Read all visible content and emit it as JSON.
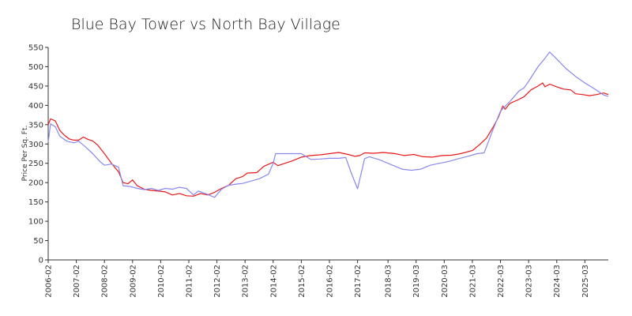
{
  "chart_data": {
    "type": "line",
    "title": "Blue Bay Tower vs North Bay Village",
    "xlabel": "",
    "ylabel": "Price Per Sq. Ft.",
    "ylim": [
      0,
      550
    ],
    "xlim": [
      "2006-02",
      "2026-01"
    ],
    "y_ticks": [
      0,
      50,
      100,
      150,
      200,
      250,
      300,
      350,
      400,
      450,
      500,
      550
    ],
    "x_ticks": [
      "2006-02",
      "2007-02",
      "2008-02",
      "2009-02",
      "2010-02",
      "2011-02",
      "2012-02",
      "2013-02",
      "2014-02",
      "2015-02",
      "2016-02",
      "2017-02",
      "2018-03",
      "2019-03",
      "2020-03",
      "2021-03",
      "2022-03",
      "2023-03",
      "2024-03",
      "2025-03"
    ],
    "grid": false,
    "legend": "none",
    "series": [
      {
        "color": "#e8181a",
        "points": [
          [
            "2006-02",
            350
          ],
          [
            "2006-03",
            365
          ],
          [
            "2006-05",
            360
          ],
          [
            "2006-07",
            335
          ],
          [
            "2006-09",
            322
          ],
          [
            "2006-11",
            313
          ],
          [
            "2007-01",
            310
          ],
          [
            "2007-03",
            310
          ],
          [
            "2007-05",
            318
          ],
          [
            "2007-07",
            312
          ],
          [
            "2007-09",
            308
          ],
          [
            "2007-11",
            298
          ],
          [
            "2008-02",
            275
          ],
          [
            "2008-05",
            250
          ],
          [
            "2008-08",
            228
          ],
          [
            "2008-10",
            200
          ],
          [
            "2008-12",
            197
          ],
          [
            "2009-02",
            207
          ],
          [
            "2009-04",
            192
          ],
          [
            "2009-07",
            183
          ],
          [
            "2009-10",
            180
          ],
          [
            "2010-01",
            178
          ],
          [
            "2010-04",
            176
          ],
          [
            "2010-07",
            168
          ],
          [
            "2010-10",
            172
          ],
          [
            "2011-01",
            166
          ],
          [
            "2011-04",
            165
          ],
          [
            "2011-07",
            172
          ],
          [
            "2011-10",
            168
          ],
          [
            "2012-01",
            175
          ],
          [
            "2012-04",
            185
          ],
          [
            "2012-07",
            193
          ],
          [
            "2012-10",
            210
          ],
          [
            "2013-01",
            216
          ],
          [
            "2013-03",
            225
          ],
          [
            "2013-07",
            226
          ],
          [
            "2013-10",
            242
          ],
          [
            "2014-02",
            253
          ],
          [
            "2014-04",
            244
          ],
          [
            "2014-07",
            250
          ],
          [
            "2014-10",
            256
          ],
          [
            "2015-02",
            266
          ],
          [
            "2015-06",
            270
          ],
          [
            "2015-10",
            272
          ],
          [
            "2016-02",
            275
          ],
          [
            "2016-06",
            278
          ],
          [
            "2016-10",
            273
          ],
          [
            "2017-01",
            268
          ],
          [
            "2017-03",
            270
          ],
          [
            "2017-05",
            277
          ],
          [
            "2017-09",
            276
          ],
          [
            "2018-01",
            278
          ],
          [
            "2018-06",
            275
          ],
          [
            "2018-10",
            270
          ],
          [
            "2019-02",
            273
          ],
          [
            "2019-06",
            267
          ],
          [
            "2019-10",
            266
          ],
          [
            "2020-02",
            270
          ],
          [
            "2020-06",
            271
          ],
          [
            "2020-10",
            275
          ],
          [
            "2021-03",
            283
          ],
          [
            "2021-06",
            298
          ],
          [
            "2021-09",
            315
          ],
          [
            "2021-12",
            345
          ],
          [
            "2022-02",
            368
          ],
          [
            "2022-04",
            398
          ],
          [
            "2022-05",
            390
          ],
          [
            "2022-07",
            405
          ],
          [
            "2022-10",
            413
          ],
          [
            "2023-01",
            422
          ],
          [
            "2023-04",
            440
          ],
          [
            "2023-07",
            450
          ],
          [
            "2023-09",
            458
          ],
          [
            "2023-10",
            448
          ],
          [
            "2023-12",
            455
          ],
          [
            "2024-03",
            448
          ],
          [
            "2024-06",
            442
          ],
          [
            "2024-09",
            440
          ],
          [
            "2024-11",
            430
          ],
          [
            "2025-02",
            428
          ],
          [
            "2025-05",
            425
          ],
          [
            "2025-08",
            428
          ],
          [
            "2025-11",
            432
          ],
          [
            "2026-01",
            428
          ]
        ]
      },
      {
        "color": "#8888ee",
        "points": [
          [
            "2006-02",
            305
          ],
          [
            "2006-03",
            352
          ],
          [
            "2006-05",
            345
          ],
          [
            "2006-07",
            320
          ],
          [
            "2006-10",
            307
          ],
          [
            "2007-01",
            303
          ],
          [
            "2007-03",
            307
          ],
          [
            "2007-06",
            292
          ],
          [
            "2007-09",
            275
          ],
          [
            "2007-12",
            255
          ],
          [
            "2008-02",
            245
          ],
          [
            "2008-05",
            248
          ],
          [
            "2008-08",
            240
          ],
          [
            "2008-10",
            192
          ],
          [
            "2009-01",
            190
          ],
          [
            "2009-04",
            185
          ],
          [
            "2009-07",
            182
          ],
          [
            "2009-10",
            185
          ],
          [
            "2010-01",
            180
          ],
          [
            "2010-04",
            185
          ],
          [
            "2010-07",
            183
          ],
          [
            "2010-10",
            188
          ],
          [
            "2011-01",
            185
          ],
          [
            "2011-04",
            168
          ],
          [
            "2011-06",
            178
          ],
          [
            "2011-09",
            172
          ],
          [
            "2012-01",
            162
          ],
          [
            "2012-04",
            183
          ],
          [
            "2012-07",
            193
          ],
          [
            "2012-10",
            196
          ],
          [
            "2013-01",
            198
          ],
          [
            "2013-04",
            203
          ],
          [
            "2013-08",
            210
          ],
          [
            "2013-12",
            222
          ],
          [
            "2014-02",
            250
          ],
          [
            "2014-03",
            275
          ],
          [
            "2014-09",
            275
          ],
          [
            "2015-02",
            275
          ],
          [
            "2015-06",
            260
          ],
          [
            "2015-10",
            261
          ],
          [
            "2016-02",
            263
          ],
          [
            "2016-06",
            263
          ],
          [
            "2016-09",
            265
          ],
          [
            "2016-11",
            230
          ],
          [
            "2017-02",
            184
          ],
          [
            "2017-05",
            262
          ],
          [
            "2017-07",
            267
          ],
          [
            "2017-11",
            260
          ],
          [
            "2018-03",
            250
          ],
          [
            "2018-09",
            235
          ],
          [
            "2019-01",
            232
          ],
          [
            "2019-05",
            235
          ],
          [
            "2019-09",
            245
          ],
          [
            "2020-01",
            250
          ],
          [
            "2020-05",
            255
          ],
          [
            "2020-09",
            262
          ],
          [
            "2021-01",
            268
          ],
          [
            "2021-05",
            275
          ],
          [
            "2021-08",
            277
          ],
          [
            "2021-12",
            340
          ],
          [
            "2022-03",
            385
          ],
          [
            "2022-07",
            410
          ],
          [
            "2022-11",
            438
          ],
          [
            "2023-01",
            445
          ],
          [
            "2023-03",
            462
          ],
          [
            "2023-07",
            500
          ],
          [
            "2023-10",
            522
          ],
          [
            "2023-12",
            538
          ],
          [
            "2024-03",
            520
          ],
          [
            "2024-07",
            495
          ],
          [
            "2024-11",
            475
          ],
          [
            "2025-03",
            458
          ],
          [
            "2025-07",
            443
          ],
          [
            "2025-11",
            427
          ],
          [
            "2026-01",
            423
          ]
        ]
      }
    ]
  }
}
